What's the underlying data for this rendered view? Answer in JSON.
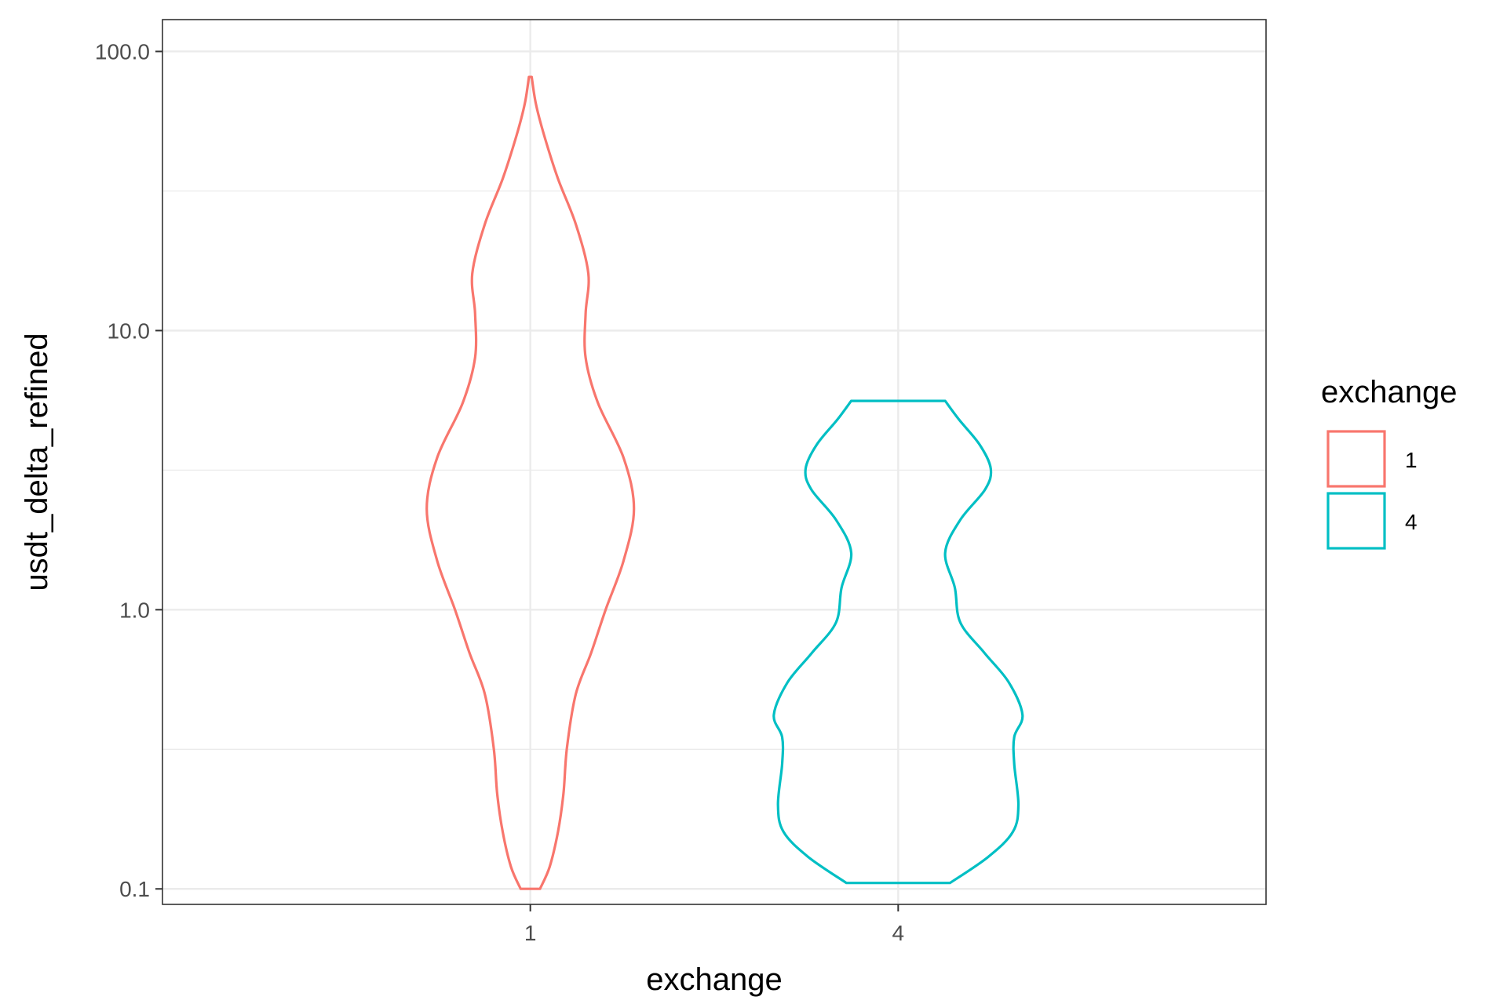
{
  "chart_data": {
    "type": "violin",
    "title": "",
    "xlabel": "exchange",
    "ylabel": "usdt_delta_refined",
    "y_scale": "log10",
    "ylim": [
      0.088,
      130
    ],
    "y_ticks": [
      "0.1",
      "1.0",
      "10.0",
      "100.0"
    ],
    "categories": [
      "1",
      "4"
    ],
    "legend": {
      "title": "exchange",
      "entries": [
        "1",
        "4"
      ],
      "position": "right"
    },
    "grid": true,
    "colors": {
      "1": "#F8766D",
      "4": "#00BFC4"
    },
    "series": [
      {
        "name": "1",
        "color": "#F8766D",
        "min": 0.1,
        "max": 81,
        "profile": [
          {
            "y": 0.1,
            "w": 0.14
          },
          {
            "y": 0.12,
            "w": 0.28
          },
          {
            "y": 0.16,
            "w": 0.4
          },
          {
            "y": 0.22,
            "w": 0.48
          },
          {
            "y": 0.32,
            "w": 0.53
          },
          {
            "y": 0.5,
            "w": 0.66
          },
          {
            "y": 0.7,
            "w": 0.88
          },
          {
            "y": 1.0,
            "w": 1.09
          },
          {
            "y": 1.5,
            "w": 1.35
          },
          {
            "y": 2.3,
            "w": 1.5
          },
          {
            "y": 3.5,
            "w": 1.35
          },
          {
            "y": 5.5,
            "w": 0.98
          },
          {
            "y": 8.0,
            "w": 0.8
          },
          {
            "y": 11.5,
            "w": 0.8
          },
          {
            "y": 16.0,
            "w": 0.84
          },
          {
            "y": 24.0,
            "w": 0.66
          },
          {
            "y": 35.0,
            "w": 0.4
          },
          {
            "y": 50.0,
            "w": 0.2
          },
          {
            "y": 65.0,
            "w": 0.08
          },
          {
            "y": 81.0,
            "w": 0.02
          }
        ]
      },
      {
        "name": "4",
        "color": "#00BFC4",
        "min": 0.105,
        "max": 5.6,
        "profile": [
          {
            "y": 0.105,
            "w": 0.75
          },
          {
            "y": 0.13,
            "w": 1.3
          },
          {
            "y": 0.16,
            "w": 1.66
          },
          {
            "y": 0.2,
            "w": 1.74
          },
          {
            "y": 0.28,
            "w": 1.68
          },
          {
            "y": 0.35,
            "w": 1.68
          },
          {
            "y": 0.42,
            "w": 1.8
          },
          {
            "y": 0.55,
            "w": 1.6
          },
          {
            "y": 0.7,
            "w": 1.25
          },
          {
            "y": 0.9,
            "w": 0.9
          },
          {
            "y": 1.2,
            "w": 0.82
          },
          {
            "y": 1.6,
            "w": 0.68
          },
          {
            "y": 2.1,
            "w": 0.9
          },
          {
            "y": 2.7,
            "w": 1.26
          },
          {
            "y": 3.2,
            "w": 1.34
          },
          {
            "y": 3.9,
            "w": 1.18
          },
          {
            "y": 4.8,
            "w": 0.88
          },
          {
            "y": 5.6,
            "w": 0.68
          }
        ]
      }
    ]
  }
}
